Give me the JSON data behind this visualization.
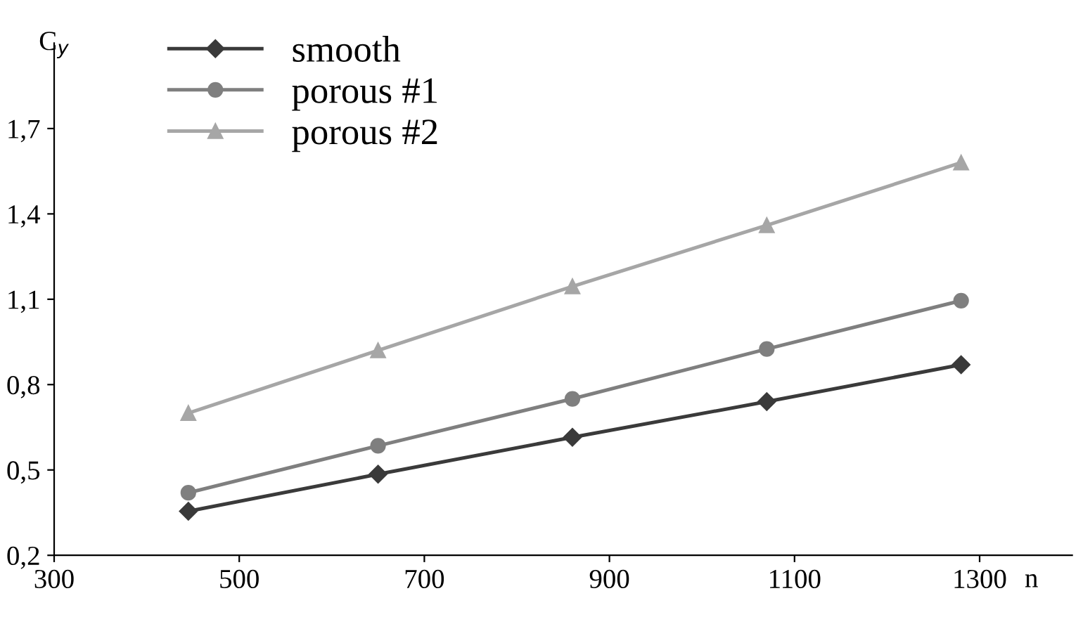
{
  "chart_data": {
    "type": "line",
    "xlabel": "n",
    "ylabel": "C$_{y}$",
    "x": [
      445,
      650,
      860,
      1070,
      1280
    ],
    "series": [
      {
        "name": "smooth",
        "color": "#3a3a3a",
        "marker": "diamond",
        "values": [
          0.355,
          0.485,
          0.615,
          0.74,
          0.87
        ]
      },
      {
        "name": "porous #1",
        "color": "#7f7f7f",
        "marker": "circle",
        "values": [
          0.42,
          0.585,
          0.75,
          0.925,
          1.095
        ]
      },
      {
        "name": "porous #2",
        "color": "#a6a6a6",
        "marker": "triangle",
        "values": [
          0.7,
          0.92,
          1.145,
          1.36,
          1.58
        ]
      }
    ],
    "xlim": [
      300,
      1400
    ],
    "xticks": [
      300,
      500,
      700,
      900,
      1100,
      1300
    ],
    "ylim": [
      0.2,
      2.0
    ],
    "yticks": [
      {
        "value": 0.2,
        "label": "0,2"
      },
      {
        "value": 0.5,
        "label": "0,5"
      },
      {
        "value": 0.8,
        "label": "0,8"
      },
      {
        "value": 1.1,
        "label": "1,1"
      },
      {
        "value": 1.4,
        "label": "1,4"
      },
      {
        "value": 1.7,
        "label": "1,7"
      }
    ],
    "grid": false,
    "legend": "top left",
    "line_style": "solid"
  }
}
